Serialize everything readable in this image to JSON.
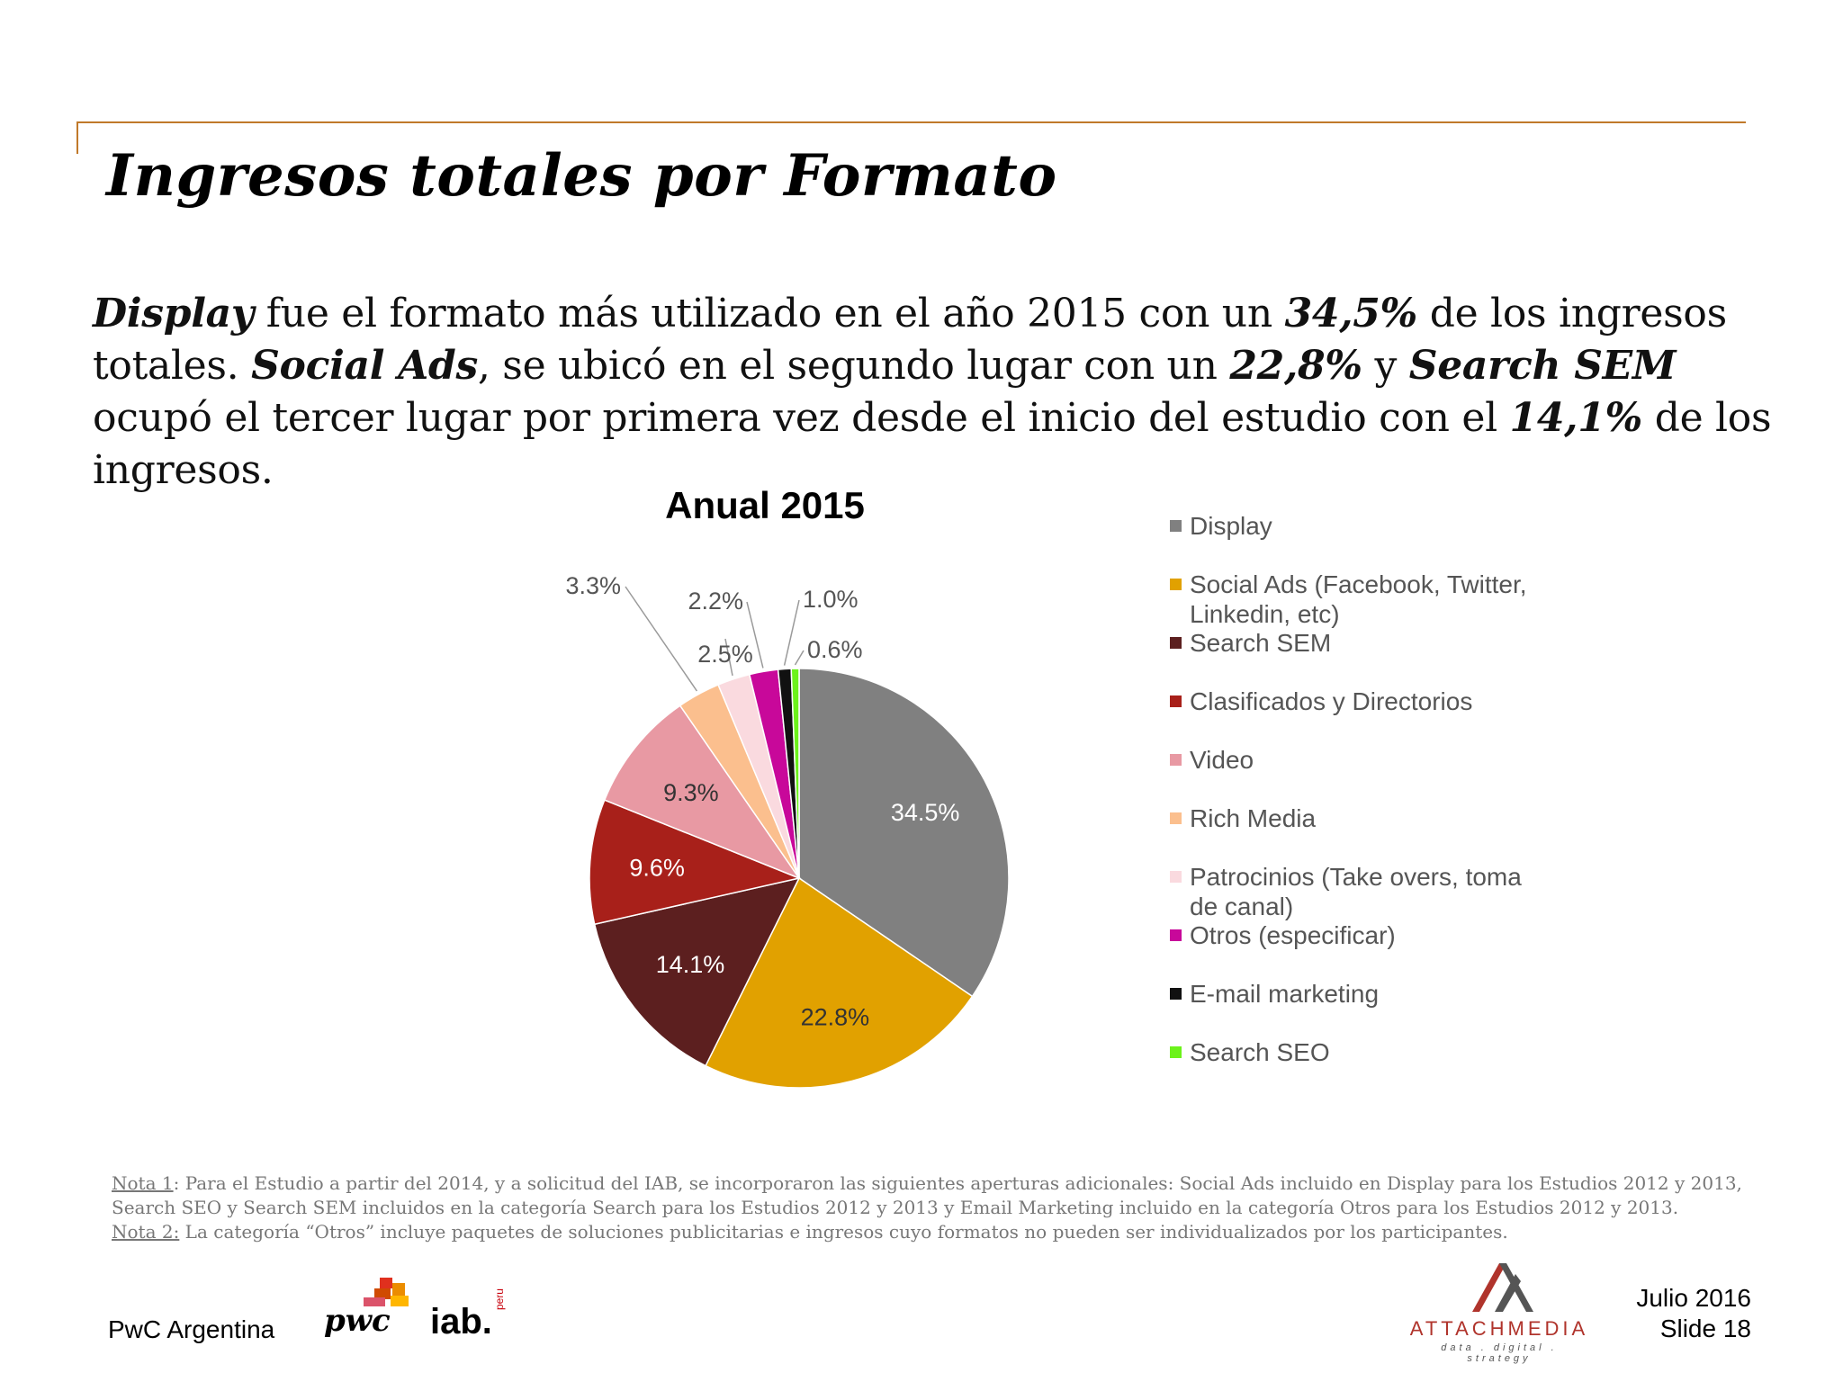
{
  "slide": {
    "title": "Ingresos totales por Formato",
    "body": {
      "s1": "Display",
      "s2": " fue el formato más utilizado en el año 2015 con un ",
      "s3": "34,5%",
      "s4": " de los ingresos totales. ",
      "s5": "Social Ads",
      "s6": ", se ubicó en el segundo lugar con un ",
      "s7": "22,8%",
      "s8": " y ",
      "s9": "Search SEM",
      "s10": " ocupó el tercer lugar por primera vez desde el inicio del estudio con el ",
      "s11": "14,1%",
      "s12": " de los ingresos."
    },
    "notes": {
      "n1_key": "Nota 1",
      "n1_text": ": Para el Estudio a partir del 2014, y a solicitud del IAB, se incorporaron las siguientes aperturas adicionales: Social Ads incluido en Display para los Estudios 2012 y 2013, Search SEO y Search SEM incluidos en la categoría Search para los Estudios 2012 y 2013 y Email Marketing incluido en la categoría Otros para los Estudios 2012 y 2013.",
      "n2_key": "Nota 2:",
      "n2_text": " La categoría “Otros” incluye paquetes de soluciones publicitarias e ingresos cuyo formatos no pueden ser individualizados por los participantes."
    },
    "footer": {
      "left": "PwC Argentina",
      "pwc_logo": "pwc",
      "iab_logo": "iab.",
      "iab_sub": "peru",
      "attach_name": "ATTACHMEDIA",
      "attach_tag": "data . digital . strategy",
      "date": "Julio 2016",
      "slide_no": "Slide 18"
    }
  },
  "chart_data": {
    "type": "pie",
    "title": "Anual 2015",
    "legend_placement": "right",
    "slices": [
      {
        "name": "Display",
        "value": 34.5,
        "label": "34.5%",
        "color": "#808080"
      },
      {
        "name": "Social Ads (Facebook, Twitter, Linkedin, etc)",
        "value": 22.8,
        "label": "22.8%",
        "color": "#e1a100"
      },
      {
        "name": "Search SEM",
        "value": 14.1,
        "label": "14.1%",
        "color": "#5c1f1f"
      },
      {
        "name": "Clasificados y Directorios",
        "value": 9.6,
        "label": "9.6%",
        "color": "#a8201a"
      },
      {
        "name": "Video",
        "value": 9.3,
        "label": "9.3%",
        "color": "#e899a3"
      },
      {
        "name": "Rich Media",
        "value": 3.3,
        "label": "3.3%",
        "color": "#fbbf8e"
      },
      {
        "name": "Patrocinios (Take overs, toma de canal)",
        "value": 2.5,
        "label": "2.5%",
        "color": "#fadadf"
      },
      {
        "name": "Otros (especificar)",
        "value": 2.2,
        "label": "2.2%",
        "color": "#c8089a"
      },
      {
        "name": "E-mail marketing",
        "value": 1.0,
        "label": "1.0%",
        "color": "#111111"
      },
      {
        "name": "Search SEO",
        "value": 0.6,
        "label": "0.6%",
        "color": "#6cf21b"
      }
    ]
  }
}
